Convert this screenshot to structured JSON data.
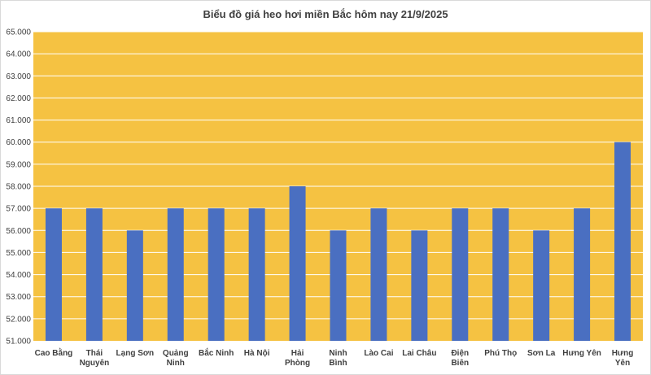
{
  "chart_data": {
    "type": "bar",
    "title": "Biểu đồ giá heo hơi miền Bắc hôm nay 21/9/2025",
    "xlabel": "",
    "ylabel": "",
    "categories": [
      "Cao Bằng",
      "Thái Nguyên",
      "Lạng Sơn",
      "Quảng Ninh",
      "Bắc Ninh",
      "Hà Nội",
      "Hải Phòng",
      "Ninh Bình",
      "Lào Cai",
      "Lai Châu",
      "Điện Biên",
      "Phú Thọ",
      "Sơn La",
      "Hưng Yên",
      "Hưng Yên"
    ],
    "values": [
      57000,
      57000,
      56000,
      57000,
      57000,
      57000,
      58000,
      56000,
      57000,
      56000,
      57000,
      57000,
      56000,
      57000,
      60000
    ],
    "ylim": [
      51000,
      65000
    ],
    "yticks": [
      "51.000",
      "52.000",
      "53.000",
      "54.000",
      "55.000",
      "56.000",
      "57.000",
      "58.000",
      "59.000",
      "60.000",
      "61.000",
      "62.000",
      "63.000",
      "64.000",
      "65.000"
    ],
    "grid": true,
    "legend": "none",
    "colors": {
      "plot_background": "#F5C242",
      "bar": "#4A6FC1",
      "gridline": "#FFFFFF",
      "text": "#404040"
    }
  }
}
